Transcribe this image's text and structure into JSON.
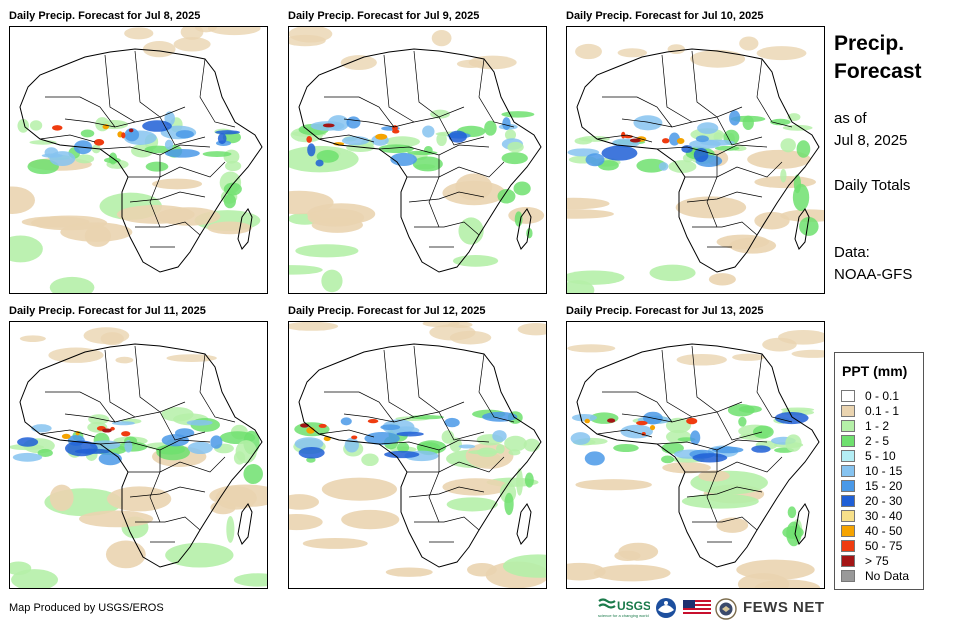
{
  "panels": [
    {
      "title": "Daily Precip. Forecast for Jul 8, 2025"
    },
    {
      "title": "Daily Precip. Forecast for Jul 9, 2025"
    },
    {
      "title": "Daily Precip. Forecast for Jul 10, 2025"
    },
    {
      "title": "Daily Precip. Forecast for Jul 11, 2025"
    },
    {
      "title": "Daily Precip. Forecast for Jul 12, 2025"
    },
    {
      "title": "Daily Precip. Forecast for Jul 13, 2025"
    }
  ],
  "sidebar": {
    "title_line1": "Precip.",
    "title_line2": "Forecast",
    "asof_line1": "as of",
    "asof_line2": "Jul 8, 2025",
    "totals": "Daily Totals",
    "data_line1": "Data:",
    "data_line2": "NOAA-GFS"
  },
  "legend": {
    "title": "PPT (mm)",
    "items": [
      {
        "label": "0 - 0.1",
        "color": "#ffffff"
      },
      {
        "label": "0.1 - 1",
        "color": "#ead4b0"
      },
      {
        "label": "1 - 2",
        "color": "#b5f0a8"
      },
      {
        "label": "2 - 5",
        "color": "#6fe06f"
      },
      {
        "label": "5 - 10",
        "color": "#b4eef5"
      },
      {
        "label": "10 - 15",
        "color": "#86c3f0"
      },
      {
        "label": "15 - 20",
        "color": "#4a99e8"
      },
      {
        "label": "20 - 30",
        "color": "#1f5fd6"
      },
      {
        "label": "30 - 40",
        "color": "#f7e08a"
      },
      {
        "label": "40 - 50",
        "color": "#f5a300"
      },
      {
        "label": "50 - 75",
        "color": "#ef3c10"
      },
      {
        "label": "> 75",
        "color": "#a31515"
      },
      {
        "label": "No Data",
        "color": "#999999"
      }
    ]
  },
  "footer": {
    "credit": "Map Produced by USGS/EROS"
  },
  "logos": {
    "usgs": "USGS",
    "usgs_tagline": "science for a changing world",
    "noaa": "NOAA",
    "fewsnet": "FEWS NET"
  }
}
